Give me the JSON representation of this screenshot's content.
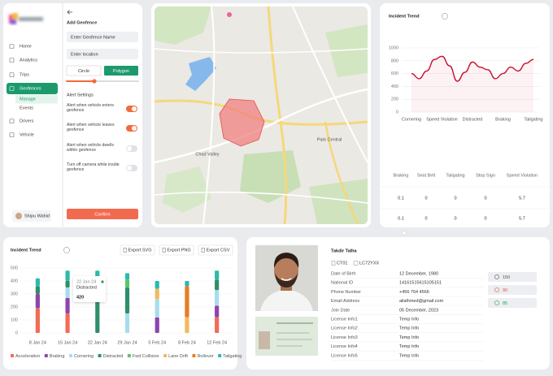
{
  "sidebar": {
    "nav": [
      "Home",
      "Analytics",
      "Trips",
      "Geofences",
      "Drivers",
      "Vehicle"
    ],
    "active": "Geofences",
    "subnav": [
      "Manage",
      "Events"
    ],
    "user": "Shipu Wahid"
  },
  "geofence": {
    "title": "Add Geofence",
    "name_placeholder": "Enter Geofence Name",
    "location_placeholder": "Enter location",
    "shapes": [
      "Circle",
      "Polygon"
    ],
    "alert_title": "Alert Settings",
    "alerts": [
      {
        "label": "Alert when vehicle enters geofence",
        "on": true
      },
      {
        "label": "Alert when vehicle leaves geofence",
        "on": true
      },
      {
        "label": "Alert when vehicle dwells within geofence",
        "on": false
      },
      {
        "label": "Turn off camera while inside geofence",
        "on": false
      }
    ],
    "confirm": "Confirm"
  },
  "map": {
    "labels": [
      "Chad Valley",
      "Park Central"
    ]
  },
  "line_chart": {
    "type": "line",
    "title": "Incident Trend",
    "categories": [
      "Cornering",
      null,
      null,
      null,
      "Speed Violation",
      null,
      null,
      null,
      "Distracted",
      null,
      null,
      null,
      "Braking",
      null,
      null,
      null,
      "Tailgating"
    ],
    "values": [
      600,
      520,
      640,
      820,
      870,
      720,
      480,
      620,
      780,
      700,
      660,
      520,
      600,
      700,
      640,
      760,
      820
    ],
    "color": "#c8102e",
    "ylim": [
      0,
      1000
    ],
    "yticks": [
      0,
      200,
      400,
      600,
      800,
      1000
    ],
    "grid": true
  },
  "incident_table": {
    "columns": [
      "Braking",
      "Seat Belt",
      "Tailgating",
      "Stop Sign",
      "Speed Violation"
    ],
    "rows": [
      [
        0.1,
        0,
        0,
        0,
        5.7
      ],
      [
        0.1,
        0,
        0,
        0,
        5.7
      ]
    ]
  },
  "bar_chart": {
    "type": "bar",
    "stacked": true,
    "title": "Incident Trend",
    "exports": [
      "Export SVG",
      "Export PNG",
      "Export CSV"
    ],
    "categories": [
      "8 Jan 24",
      "15 Jan 24",
      "22 Jan 24",
      "29 Jan 24",
      "5 Feb 24",
      "8 Feb 24",
      "12 Feb 24"
    ],
    "series": [
      {
        "name": "Acceleration",
        "color": "#f26b57",
        "values": [
          190,
          150,
          0,
          0,
          0,
          0,
          120
        ]
      },
      {
        "name": "Braking",
        "color": "#8e44ad",
        "values": [
          110,
          120,
          0,
          0,
          120,
          0,
          90
        ]
      },
      {
        "name": "Cornering",
        "color": "#a8dced",
        "values": [
          0,
          80,
          0,
          150,
          140,
          0,
          120
        ]
      },
      {
        "name": "Distracted",
        "color": "#2f8f6a",
        "values": [
          60,
          50,
          420,
          200,
          0,
          0,
          80
        ]
      },
      {
        "name": "Fwd Collision",
        "color": "#5cc46a",
        "values": [
          0,
          0,
          0,
          60,
          0,
          0,
          0
        ]
      },
      {
        "name": "Lane Drift",
        "color": "#f4b860",
        "values": [
          0,
          0,
          0,
          0,
          80,
          120,
          0
        ]
      },
      {
        "name": "Rollover",
        "color": "#e67e22",
        "values": [
          0,
          0,
          0,
          0,
          0,
          240,
          0
        ]
      },
      {
        "name": "Tailgating",
        "color": "#2bbbad",
        "values": [
          60,
          80,
          60,
          50,
          60,
          40,
          70
        ]
      }
    ],
    "ylim": [
      0,
      500
    ],
    "yticks": [
      0,
      100,
      200,
      300,
      400,
      500
    ],
    "grid": true,
    "tooltip": {
      "date": "22 Jan 24",
      "series": "Distracted",
      "value": 420
    }
  },
  "profile": {
    "name": "Takdir Talha",
    "tags": [
      "CT01",
      "LC72YXX"
    ],
    "fields": [
      {
        "label": "Date of Birth",
        "value": "12 December, 1980"
      },
      {
        "label": "National ID",
        "value": "14161515615105151"
      },
      {
        "label": "Phone Number",
        "value": "+456 764 4566"
      },
      {
        "label": "Email Address",
        "value": "alialhmed@gmail.com"
      },
      {
        "label": "Join Date",
        "value": "05 December, 2023"
      },
      {
        "label": "License Info1",
        "value": "Temp Info"
      },
      {
        "label": "License Info2",
        "value": "Temp Info"
      },
      {
        "label": "License Info3",
        "value": "Temp Info"
      },
      {
        "label": "License Info4",
        "value": "Temp Info"
      },
      {
        "label": "License Info5",
        "value": "Temp Info"
      }
    ],
    "stats": [
      {
        "value": 150,
        "color": "#555555"
      },
      {
        "value": 90,
        "color": "#e0533a"
      },
      {
        "value": 85,
        "color": "#2e9c5a"
      }
    ]
  }
}
